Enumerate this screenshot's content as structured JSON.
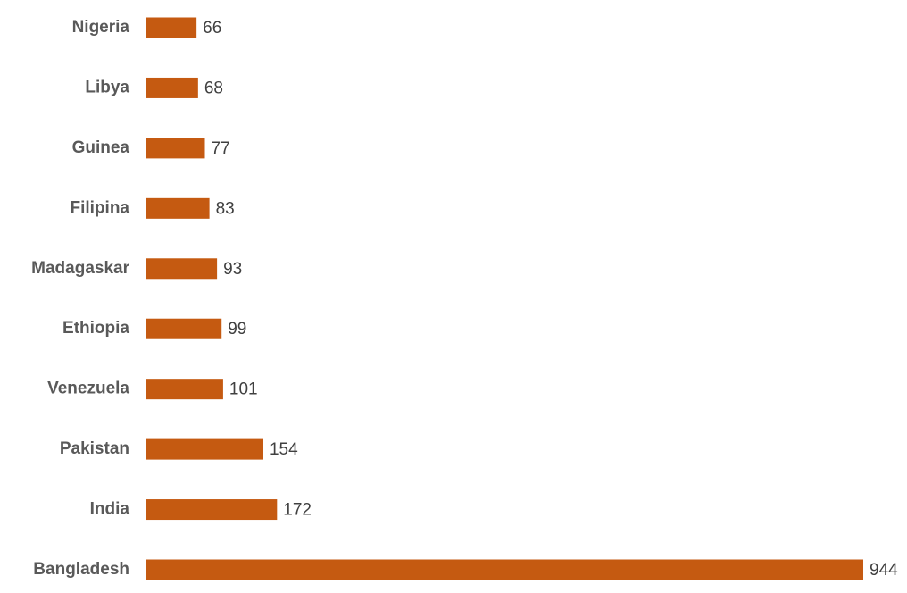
{
  "chart_data": {
    "type": "bar",
    "orientation": "horizontal",
    "categories": [
      "Nigeria",
      "Libya",
      "Guinea",
      "Filipina",
      "Madagaskar",
      "Ethiopia",
      "Venezuela",
      "Pakistan",
      "India",
      "Bangladesh"
    ],
    "values": [
      66,
      68,
      77,
      83,
      93,
      99,
      101,
      154,
      172,
      944
    ],
    "color": "#c55a11"
  }
}
